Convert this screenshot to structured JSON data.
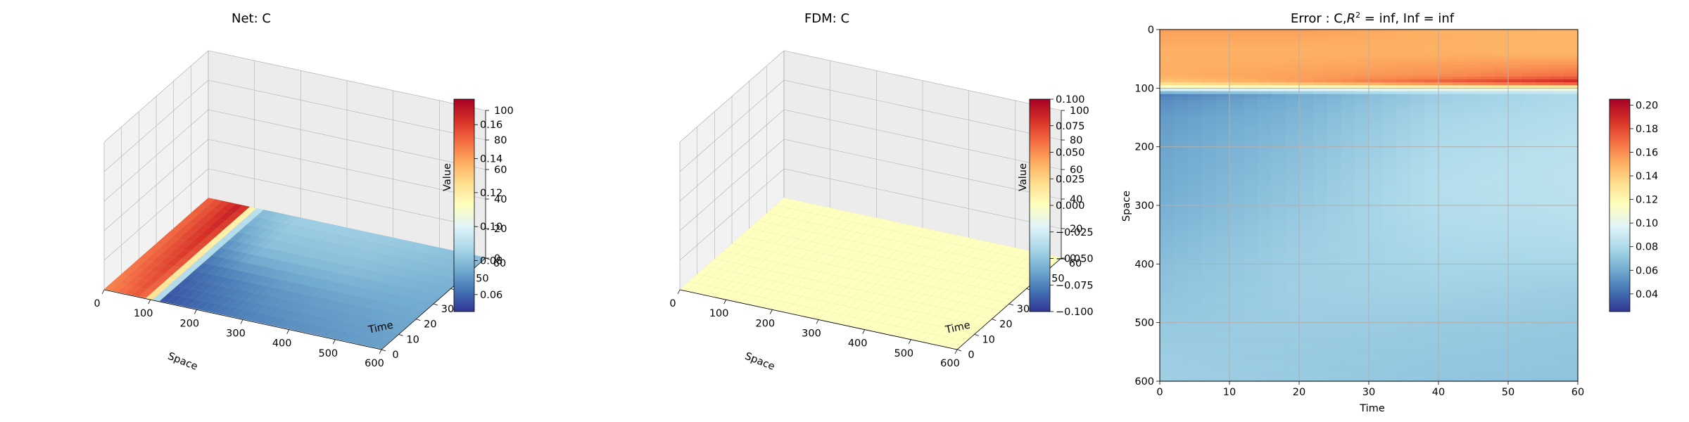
{
  "colors": {
    "colormap": [
      "#313695",
      "#4575b4",
      "#74add1",
      "#abd9e9",
      "#e0f3f8",
      "#ffffbf",
      "#fee090",
      "#fdae61",
      "#f46d43",
      "#d73027",
      "#a50026"
    ],
    "pane": "#f2f2f2",
    "grid": "#b0b0b0"
  },
  "chart_data": [
    {
      "type": "surface3d",
      "title": "Net: C",
      "xlabel": "Space",
      "ylabel": "Time",
      "zlabel": "Value",
      "xlim": [
        0,
        600
      ],
      "ylim": [
        0,
        60
      ],
      "zlim": [
        0,
        100
      ],
      "x_ticks": [
        "0",
        "100",
        "200",
        "300",
        "400",
        "500",
        "600"
      ],
      "y_ticks": [
        "0",
        "10",
        "20",
        "30",
        "40",
        "50",
        "60"
      ],
      "z_ticks": [
        "0",
        "20",
        "40",
        "60",
        "80",
        "100"
      ],
      "surface": {
        "x": [
          0,
          40,
          80,
          100,
          110,
          120,
          200,
          300,
          400,
          500,
          600
        ],
        "t": [
          0,
          20,
          40,
          60
        ],
        "values": [
          [
            0.145,
            0.148,
            0.15,
            0.152
          ],
          [
            0.15,
            0.155,
            0.158,
            0.16
          ],
          [
            0.155,
            0.16,
            0.165,
            0.17
          ],
          [
            0.12,
            0.115,
            0.112,
            0.11
          ],
          [
            0.1,
            0.1,
            0.095,
            0.095
          ],
          [
            0.055,
            0.06,
            0.07,
            0.08
          ],
          [
            0.06,
            0.065,
            0.08,
            0.085
          ],
          [
            0.065,
            0.07,
            0.08,
            0.085
          ],
          [
            0.068,
            0.072,
            0.08,
            0.084
          ],
          [
            0.07,
            0.073,
            0.078,
            0.082
          ],
          [
            0.072,
            0.074,
            0.076,
            0.08
          ]
        ]
      },
      "colorbar": {
        "min": 0.05,
        "max": 0.175,
        "ticks": [
          "0.06",
          "0.08",
          "0.10",
          "0.12",
          "0.14",
          "0.16"
        ]
      }
    },
    {
      "type": "surface3d",
      "title": "FDM: C",
      "xlabel": "Space",
      "ylabel": "Time",
      "zlabel": "Value",
      "xlim": [
        0,
        600
      ],
      "ylim": [
        0,
        60
      ],
      "zlim": [
        0,
        100
      ],
      "x_ticks": [
        "0",
        "100",
        "200",
        "300",
        "400",
        "500",
        "600"
      ],
      "y_ticks": [
        "0",
        "10",
        "20",
        "30",
        "40",
        "50",
        "60"
      ],
      "z_ticks": [
        "0",
        "20",
        "40",
        "60",
        "80",
        "100"
      ],
      "surface": {
        "x": [
          0,
          600
        ],
        "t": [
          0,
          60
        ],
        "values": [
          [
            0,
            0
          ],
          [
            0,
            0
          ]
        ]
      },
      "colorbar": {
        "min": -0.1,
        "max": 0.1,
        "ticks": [
          "−0.100",
          "−0.075",
          "−0.050",
          "−0.025",
          "0.000",
          "0.025",
          "0.050",
          "0.075",
          "0.100"
        ]
      }
    },
    {
      "type": "heatmap",
      "title": "Error : C,R² = inf, Inf = inf",
      "title_parts": {
        "pre": "Error : C,",
        "r": "R",
        "sup": "2",
        "post": " = inf, Inf = inf"
      },
      "xlabel": "Time",
      "ylabel": "Space",
      "xlim": [
        0,
        60
      ],
      "ylim": [
        600,
        0
      ],
      "x_ticks": [
        "0",
        "10",
        "20",
        "30",
        "40",
        "50",
        "60"
      ],
      "y_ticks": [
        "0",
        "100",
        "200",
        "300",
        "400",
        "500",
        "600"
      ],
      "grid": true,
      "rows": {
        "space": [
          0,
          20,
          40,
          60,
          80,
          90,
          95,
          100,
          105,
          110,
          120,
          150,
          200,
          250,
          300,
          350,
          400,
          450,
          500,
          550,
          600
        ],
        "cols_time": [
          0,
          20,
          40,
          60
        ],
        "values": [
          [
            0.155,
            0.155,
            0.15,
            0.148
          ],
          [
            0.152,
            0.152,
            0.15,
            0.148
          ],
          [
            0.15,
            0.15,
            0.15,
            0.148
          ],
          [
            0.15,
            0.152,
            0.155,
            0.158
          ],
          [
            0.15,
            0.155,
            0.16,
            0.17
          ],
          [
            0.14,
            0.155,
            0.175,
            0.195
          ],
          [
            0.125,
            0.13,
            0.14,
            0.15
          ],
          [
            0.105,
            0.105,
            0.108,
            0.11
          ],
          [
            0.085,
            0.09,
            0.095,
            0.098
          ],
          [
            0.045,
            0.06,
            0.075,
            0.08
          ],
          [
            0.05,
            0.062,
            0.075,
            0.08
          ],
          [
            0.055,
            0.065,
            0.078,
            0.082
          ],
          [
            0.058,
            0.068,
            0.08,
            0.084
          ],
          [
            0.06,
            0.07,
            0.082,
            0.085
          ],
          [
            0.062,
            0.072,
            0.082,
            0.084
          ],
          [
            0.065,
            0.074,
            0.08,
            0.082
          ],
          [
            0.068,
            0.075,
            0.078,
            0.078
          ],
          [
            0.07,
            0.075,
            0.076,
            0.074
          ],
          [
            0.072,
            0.074,
            0.073,
            0.072
          ],
          [
            0.074,
            0.073,
            0.072,
            0.071
          ],
          [
            0.075,
            0.073,
            0.071,
            0.07
          ]
        ]
      },
      "colorbar": {
        "min": 0.025,
        "max": 0.205,
        "ticks": [
          "0.04",
          "0.06",
          "0.08",
          "0.10",
          "0.12",
          "0.14",
          "0.16",
          "0.18",
          "0.20"
        ]
      }
    }
  ]
}
